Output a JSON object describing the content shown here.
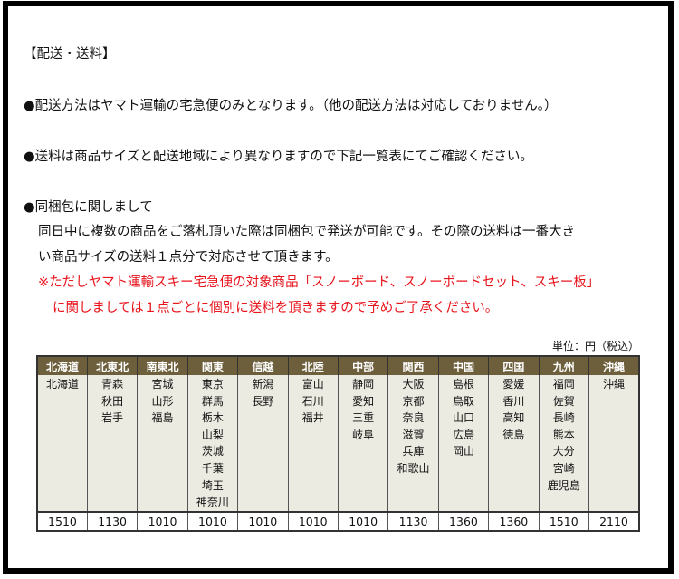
{
  "title": "【配送・送料】",
  "lines": [
    "●配送方法はヤマト運輸の宅急便のみとなります。（他の配送方法は対応しておりません。）",
    "●送料は商品サイズと配送地域により異なりますので下記一覧表にてご確認ください。",
    "●同梱包に関しまして",
    "同日中に複数の商品をご落札頂いた際は同梱包で発送が可能です。その際の送料は一番大き",
    "い商品サイズの送料１点分で対応させて頂きます。",
    "※ただしヤマト運輸スキー宅急便の対象商品「スノーボード、スノーボードセット、スキー板」",
    "に関しましては１点ごとに個別に送料を頂きますので予めご了承ください。"
  ],
  "table": {
    "unit": "単位：円（税込）",
    "columns": [
      {
        "region": "北海道",
        "prefs": [
          "北海道"
        ],
        "price": "1510"
      },
      {
        "region": "北東北",
        "prefs": [
          "青森",
          "秋田",
          "岩手"
        ],
        "price": "1130"
      },
      {
        "region": "南東北",
        "prefs": [
          "宮城",
          "山形",
          "福島"
        ],
        "price": "1010"
      },
      {
        "region": "関東",
        "prefs": [
          "東京",
          "群馬",
          "栃木",
          "山梨",
          "茨城",
          "千葉",
          "埼玉",
          "神奈川"
        ],
        "price": "1010"
      },
      {
        "region": "信越",
        "prefs": [
          "新潟",
          "長野"
        ],
        "price": "1010"
      },
      {
        "region": "北陸",
        "prefs": [
          "富山",
          "石川",
          "福井"
        ],
        "price": "1010"
      },
      {
        "region": "中部",
        "prefs": [
          "静岡",
          "愛知",
          "三重",
          "岐阜"
        ],
        "price": "1010"
      },
      {
        "region": "関西",
        "prefs": [
          "大阪",
          "京都",
          "奈良",
          "滋賀",
          "兵庫",
          "和歌山"
        ],
        "price": "1130"
      },
      {
        "region": "中国",
        "prefs": [
          "島根",
          "鳥取",
          "山口",
          "広島",
          "岡山"
        ],
        "price": "1360"
      },
      {
        "region": "四国",
        "prefs": [
          "愛媛",
          "香川",
          "高知",
          "徳島"
        ],
        "price": "1360"
      },
      {
        "region": "九州",
        "prefs": [
          "福岡",
          "佐賀",
          "長崎",
          "熊本",
          "大分",
          "宮崎",
          "鹿児島"
        ],
        "price": "1510"
      },
      {
        "region": "沖縄",
        "prefs": [
          "沖縄"
        ],
        "price": "2110"
      }
    ]
  },
  "colors": {
    "header_bg": "#6e5f3c",
    "body_bg": "#ecebe2",
    "note_red": "#e8141c"
  }
}
